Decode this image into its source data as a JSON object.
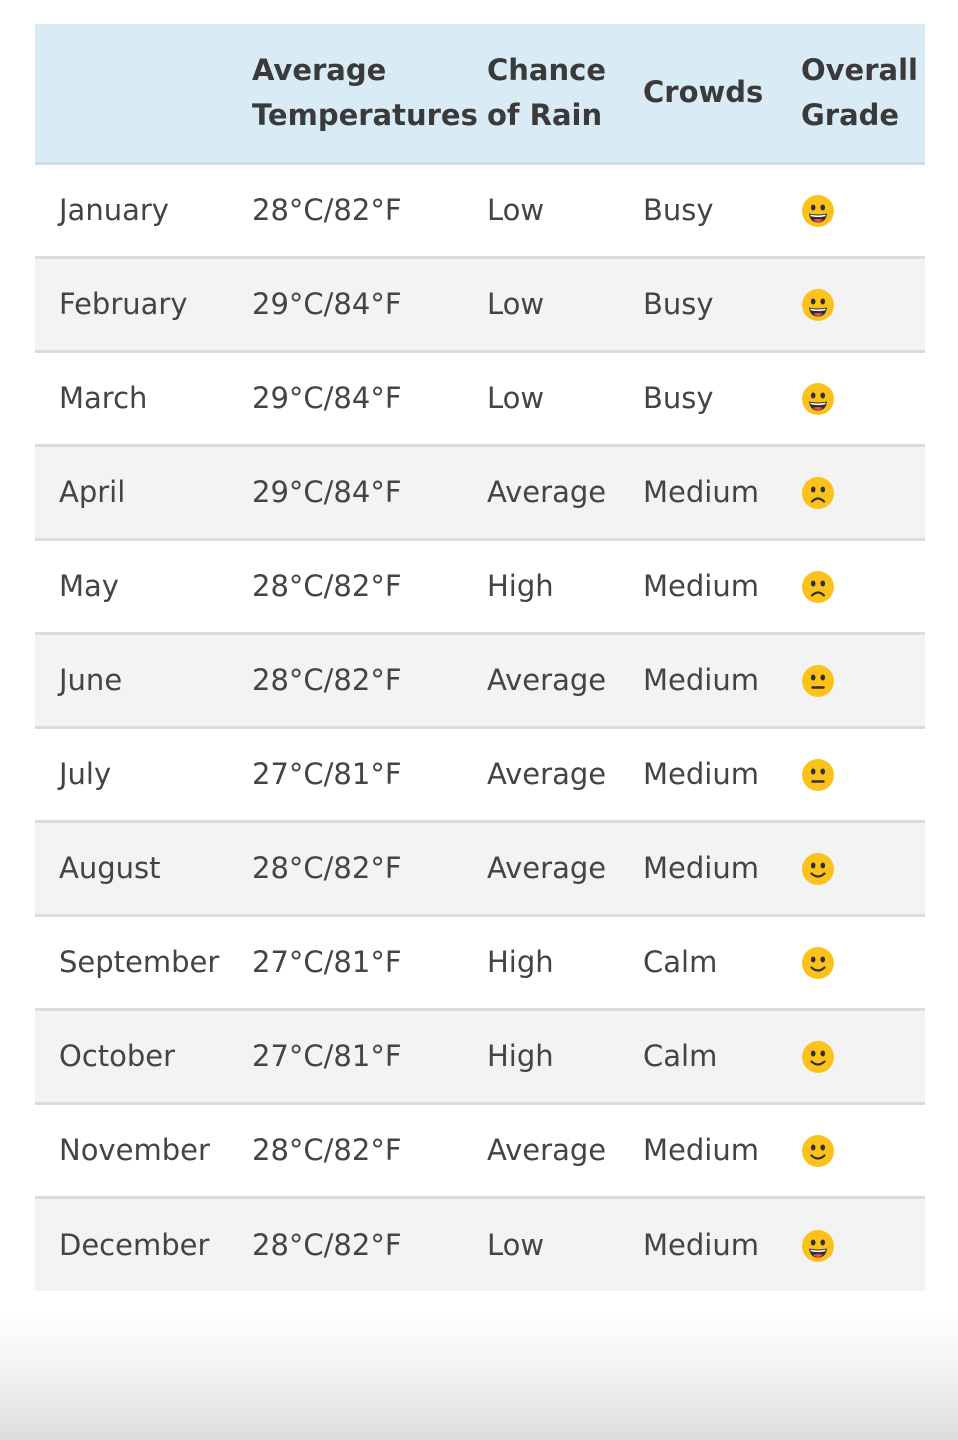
{
  "header": {
    "month": "",
    "temperature_line1": "Average",
    "temperature_line2": "Temperatures",
    "rain_line1": "Chance",
    "rain_line2": "of Rain",
    "crowds": "Crowds",
    "grade_line1": "Overall",
    "grade_line2": "Grade"
  },
  "rows": [
    {
      "month": "January",
      "temperature": "28°C/82°F",
      "rain": "Low",
      "crowds": "Busy",
      "grade": "grinning-face-icon"
    },
    {
      "month": "February",
      "temperature": "29°C/84°F",
      "rain": "Low",
      "crowds": "Busy",
      "grade": "grinning-face-icon"
    },
    {
      "month": "March",
      "temperature": "29°C/84°F",
      "rain": "Low",
      "crowds": "Busy",
      "grade": "grinning-face-icon"
    },
    {
      "month": "April",
      "temperature": "29°C/84°F",
      "rain": "Average",
      "crowds": "Medium",
      "grade": "frowning-face-icon"
    },
    {
      "month": "May",
      "temperature": "28°C/82°F",
      "rain": "High",
      "crowds": "Medium",
      "grade": "frowning-face-icon"
    },
    {
      "month": "June",
      "temperature": "28°C/82°F",
      "rain": "Average",
      "crowds": "Medium",
      "grade": "neutral-face-icon"
    },
    {
      "month": "July",
      "temperature": "27°C/81°F",
      "rain": "Average",
      "crowds": "Medium",
      "grade": "neutral-face-icon"
    },
    {
      "month": "August",
      "temperature": "28°C/82°F",
      "rain": "Average",
      "crowds": "Medium",
      "grade": "slightly-smiling-face-icon"
    },
    {
      "month": "September",
      "temperature": "27°C/81°F",
      "rain": "High",
      "crowds": "Calm",
      "grade": "slightly-smiling-face-icon"
    },
    {
      "month": "October",
      "temperature": "27°C/81°F",
      "rain": "High",
      "crowds": "Calm",
      "grade": "slightly-smiling-face-icon"
    },
    {
      "month": "November",
      "temperature": "28°C/82°F",
      "rain": "Average",
      "crowds": "Medium",
      "grade": "slightly-smiling-face-icon"
    },
    {
      "month": "December",
      "temperature": "28°C/82°F",
      "rain": "Low",
      "crowds": "Medium",
      "grade": "grinning-face-icon"
    }
  ],
  "colors": {
    "header_background": "#d9ecf6",
    "alt_row_background": "#f3f3f3",
    "text": "#444444",
    "emoji_face": "#fcc21b"
  }
}
